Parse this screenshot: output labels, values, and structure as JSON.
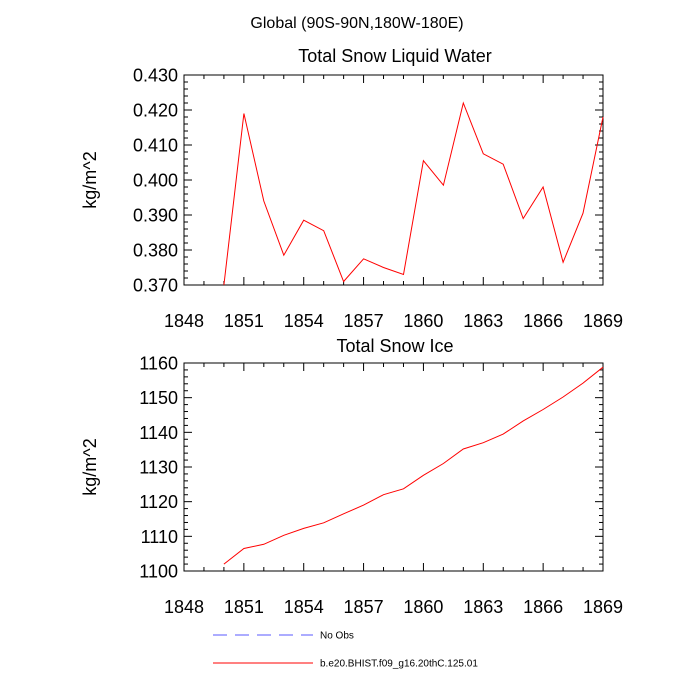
{
  "supertitle": "Global (90S-90N,180W-180E)",
  "colors": {
    "model_line": "#ff0000",
    "obs_line": "#5a5aff",
    "axis": "#000000"
  },
  "chart_data": [
    {
      "type": "line",
      "title": "Total Snow Liquid Water",
      "xlabel": "",
      "ylabel": "kg/m^2",
      "xlim": [
        1849,
        1869
      ],
      "ylim": [
        0.37,
        0.43
      ],
      "xticks": [
        1848,
        1851,
        1854,
        1857,
        1860,
        1863,
        1866,
        1869
      ],
      "yticks": [
        "0.370",
        "0.380",
        "0.390",
        "0.400",
        "0.410",
        "0.420",
        "0.430"
      ],
      "series": [
        {
          "name": "b.e20.BHIST.f09_g16.20thC.125.01",
          "x": [
            1850,
            1851,
            1852,
            1853,
            1854,
            1855,
            1856,
            1857,
            1858,
            1859,
            1860,
            1861,
            1862,
            1863,
            1864,
            1865,
            1866,
            1867,
            1868,
            1869
          ],
          "values": [
            0.37,
            0.419,
            0.394,
            0.3785,
            0.3885,
            0.3855,
            0.371,
            0.3775,
            0.375,
            0.373,
            0.4055,
            0.3985,
            0.422,
            0.4075,
            0.4045,
            0.389,
            0.398,
            0.3765,
            0.3905,
            0.418
          ]
        }
      ]
    },
    {
      "type": "line",
      "title": "Total Snow Ice",
      "xlabel": "",
      "ylabel": "kg/m^2",
      "xlim": [
        1849,
        1869
      ],
      "ylim": [
        1100,
        1160
      ],
      "xticks": [
        1848,
        1851,
        1854,
        1857,
        1860,
        1863,
        1866,
        1869
      ],
      "yticks": [
        "1100",
        "1110",
        "1120",
        "1130",
        "1140",
        "1150",
        "1160"
      ],
      "series": [
        {
          "name": "b.e20.BHIST.f09_g16.20thC.125.01",
          "x": [
            1850,
            1851,
            1852,
            1853,
            1854,
            1855,
            1856,
            1857,
            1858,
            1859,
            1860,
            1861,
            1862,
            1863,
            1864,
            1865,
            1866,
            1867,
            1868,
            1869
          ],
          "values": [
            1102,
            1106.5,
            1107.7,
            1110.3,
            1112.3,
            1113.9,
            1116.5,
            1119,
            1122,
            1123.7,
            1127.6,
            1131,
            1135.2,
            1137,
            1139.5,
            1143.3,
            1146.6,
            1150.2,
            1154.2,
            1158.8
          ]
        }
      ]
    }
  ],
  "legend": [
    {
      "label": "No Obs",
      "style": "dashed",
      "color": "#5a5aff"
    },
    {
      "label": "b.e20.BHIST.f09_g16.20thC.125.01",
      "style": "solid",
      "color": "#ff0000"
    }
  ]
}
